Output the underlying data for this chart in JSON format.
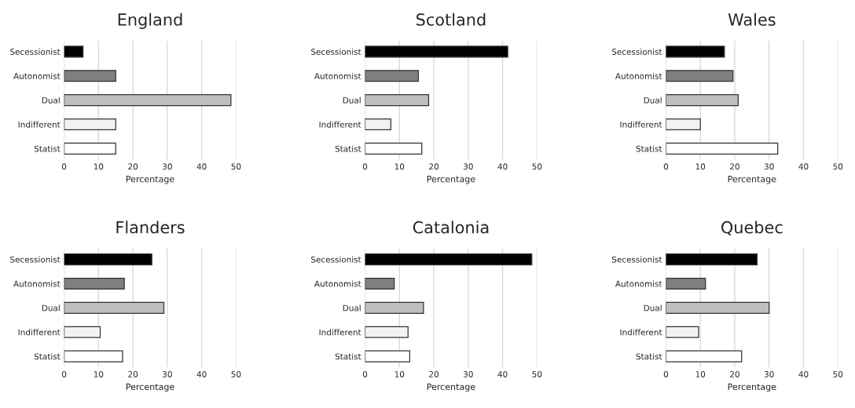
{
  "chart_data": [
    {
      "type": "bar",
      "orientation": "horizontal",
      "title": "England",
      "xlabel": "Percentage",
      "categories": [
        "Secessionist",
        "Autonomist",
        "Dual",
        "Indifferent",
        "Statist"
      ],
      "values": [
        5.5,
        15,
        48.5,
        15,
        15
      ],
      "colors": [
        "#000000",
        "#7f7f7f",
        "#bfbfbf",
        "#f2f2f2",
        "#ffffff"
      ],
      "xlim": [
        0,
        50
      ],
      "xticks": [
        0,
        10,
        20,
        30,
        40,
        50
      ],
      "grid": "x"
    },
    {
      "type": "bar",
      "orientation": "horizontal",
      "title": "Scotland",
      "xlabel": "Percentage",
      "categories": [
        "Secessionist",
        "Autonomist",
        "Dual",
        "Indifferent",
        "Statist"
      ],
      "values": [
        41.5,
        15.5,
        18.5,
        7.5,
        16.5
      ],
      "colors": [
        "#000000",
        "#7f7f7f",
        "#bfbfbf",
        "#f2f2f2",
        "#ffffff"
      ],
      "xlim": [
        0,
        50
      ],
      "xticks": [
        0,
        10,
        20,
        30,
        40,
        50
      ],
      "grid": "x"
    },
    {
      "type": "bar",
      "orientation": "horizontal",
      "title": "Wales",
      "xlabel": "Percentage",
      "categories": [
        "Secessionist",
        "Autonomist",
        "Dual",
        "Indifferent",
        "Statist"
      ],
      "values": [
        17,
        19.5,
        21,
        10,
        32.5
      ],
      "colors": [
        "#000000",
        "#7f7f7f",
        "#bfbfbf",
        "#f2f2f2",
        "#ffffff"
      ],
      "xlim": [
        0,
        50
      ],
      "xticks": [
        0,
        10,
        20,
        30,
        40,
        50
      ],
      "grid": "x"
    },
    {
      "type": "bar",
      "orientation": "horizontal",
      "title": "Flanders",
      "xlabel": "Percentage",
      "categories": [
        "Secessionist",
        "Autonomist",
        "Dual",
        "Indifferent",
        "Statist"
      ],
      "values": [
        25.5,
        17.5,
        29,
        10.5,
        17
      ],
      "colors": [
        "#000000",
        "#7f7f7f",
        "#bfbfbf",
        "#f2f2f2",
        "#ffffff"
      ],
      "xlim": [
        0,
        50
      ],
      "xticks": [
        0,
        10,
        20,
        30,
        40,
        50
      ],
      "grid": "x"
    },
    {
      "type": "bar",
      "orientation": "horizontal",
      "title": "Catalonia",
      "xlabel": "Percentage",
      "categories": [
        "Secessionist",
        "Autonomist",
        "Dual",
        "Indifferent",
        "Statist"
      ],
      "values": [
        48.5,
        8.5,
        17,
        12.5,
        13
      ],
      "colors": [
        "#000000",
        "#7f7f7f",
        "#bfbfbf",
        "#f2f2f2",
        "#ffffff"
      ],
      "xlim": [
        0,
        50
      ],
      "xticks": [
        0,
        10,
        20,
        30,
        40,
        50
      ],
      "grid": "x"
    },
    {
      "type": "bar",
      "orientation": "horizontal",
      "title": "Quebec",
      "xlabel": "Percentage",
      "categories": [
        "Secessionist",
        "Autonomist",
        "Dual",
        "Indifferent",
        "Statist"
      ],
      "values": [
        26.5,
        11.5,
        30,
        9.5,
        22
      ],
      "colors": [
        "#000000",
        "#7f7f7f",
        "#bfbfbf",
        "#f2f2f2",
        "#ffffff"
      ],
      "xlim": [
        0,
        50
      ],
      "xticks": [
        0,
        10,
        20,
        30,
        40,
        50
      ],
      "grid": "x"
    }
  ]
}
